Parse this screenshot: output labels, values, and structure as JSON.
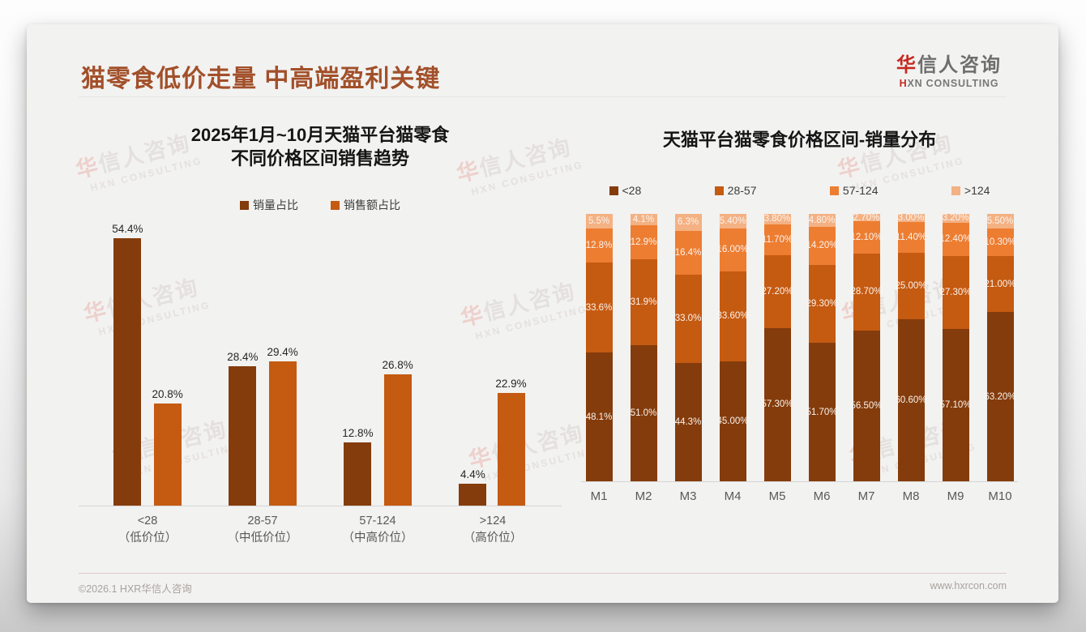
{
  "page": {
    "title": "猫零食低价走量 中高端盈利关键",
    "logo": {
      "brand_accent": "华",
      "brand_rest": "信人咨询",
      "sub_accent": "H",
      "sub_rest": "XN CONSULTING"
    },
    "watermark": {
      "main_accent": "华",
      "main_rest": "信人咨询",
      "sub": "HXN CONSULTING"
    },
    "footer": {
      "copyright": "©2026.1 HXR华信人咨询",
      "website": "www.hxrcon.com"
    }
  },
  "colors": {
    "header_title": "#A2502A",
    "logo_red": "#C42A21",
    "slide_background": "#F2F2F1",
    "price_lt28": "#843C0C",
    "price_28_57": "#C55A11",
    "price_57_124": "#ED7D31",
    "price_gt124": "#F4B183"
  },
  "chart_data": [
    {
      "type": "bar",
      "title_line1": "2025年1月~10月天猫平台猫零食",
      "title_line2": "不同价格区间销售趋势",
      "categories": [
        "<28",
        "28-57",
        "57-124",
        ">124"
      ],
      "category_subs": [
        "（低价位）",
        "（中低价位）",
        "（中高价位）",
        "（高价位）"
      ],
      "series": [
        {
          "name": "销量占比",
          "color": "#843C0C",
          "values": [
            54.4,
            28.4,
            12.8,
            4.4
          ],
          "labels": [
            "54.4%",
            "28.4%",
            "12.8%",
            "4.4%"
          ]
        },
        {
          "name": "销售额占比",
          "color": "#C55A11",
          "values": [
            20.8,
            29.4,
            26.8,
            22.9
          ],
          "labels": [
            "20.8%",
            "29.4%",
            "26.8%",
            "22.9%"
          ]
        }
      ],
      "ylabel": "",
      "xlabel": "",
      "ylim": [
        0,
        60
      ],
      "grid": false,
      "legend_position": "top"
    },
    {
      "type": "stacked-bar",
      "title": "天猫平台猫零食价格区间-销量分布",
      "categories": [
        "M1",
        "M2",
        "M3",
        "M4",
        "M5",
        "M6",
        "M7",
        "M8",
        "M9",
        "M10"
      ],
      "series": [
        {
          "name": "<28",
          "color": "#843C0C",
          "values": [
            48.1,
            51.0,
            44.3,
            45.0,
            57.3,
            51.7,
            56.5,
            60.6,
            57.1,
            63.2
          ],
          "labels": [
            "48.1%",
            "51.0%",
            "44.3%",
            "45.00%",
            "57.30%",
            "51.70%",
            "56.50%",
            "60.60%",
            "57.10%",
            "63.20%"
          ]
        },
        {
          "name": "28-57",
          "color": "#C55A11",
          "values": [
            33.6,
            31.9,
            33.0,
            33.6,
            27.2,
            29.3,
            28.7,
            25.0,
            27.3,
            21.0
          ],
          "labels": [
            "33.6%",
            "31.9%",
            "33.0%",
            "33.60%",
            "27.20%",
            "29.30%",
            "28.70%",
            "25.00%",
            "27.30%",
            "21.00%"
          ]
        },
        {
          "name": "57-124",
          "color": "#ED7D31",
          "values": [
            12.8,
            12.9,
            16.4,
            16.0,
            11.7,
            14.2,
            12.1,
            11.4,
            12.4,
            10.3
          ],
          "labels": [
            "12.8%",
            "12.9%",
            "16.4%",
            "16.00%",
            "11.70%",
            "14.20%",
            "12.10%",
            "11.40%",
            "12.40%",
            "10.30%"
          ]
        },
        {
          "name": ">124",
          "color": "#F4B183",
          "values": [
            5.5,
            4.1,
            6.3,
            5.4,
            3.8,
            4.8,
            2.7,
            3.0,
            3.2,
            5.5
          ],
          "labels": [
            "5.5%",
            "4.1%",
            "6.3%",
            "5.40%",
            "3.80%",
            "4.80%",
            "2.70%",
            "3.00%",
            "3.20%",
            "5.50%"
          ]
        }
      ],
      "ylabel": "",
      "xlabel": "",
      "ylim": [
        0,
        100
      ],
      "grid": false,
      "legend_position": "top"
    }
  ]
}
